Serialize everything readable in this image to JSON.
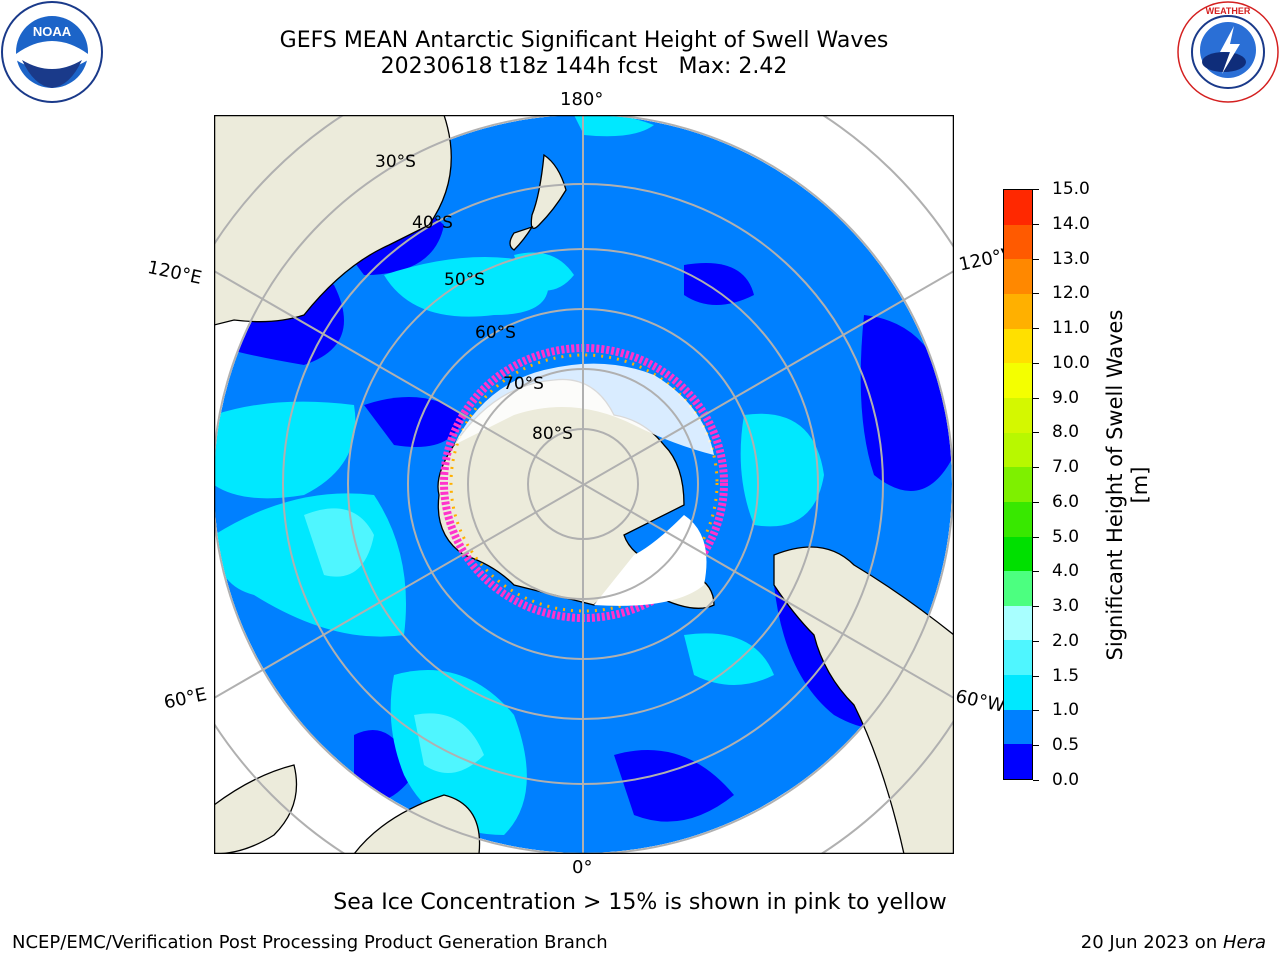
{
  "title": {
    "line1": "GEFS MEAN Antarctic Significant Height of Swell Waves",
    "line2": "20230618 t18z 144h fcst   Max: 2.42"
  },
  "logos": {
    "left": {
      "icon": "noaa-logo",
      "text": "NOAA",
      "ring_text": "NATIONAL OCEANIC AND ATMOSPHERIC ADMINISTRATION · U.S. DEPARTMENT OF COMMERCE"
    },
    "right": {
      "icon": "nws-logo",
      "ring_text": "NATIONAL WEATHER SERVICE"
    }
  },
  "map": {
    "projection": "south-polar-stereographic",
    "longitude_labels": {
      "top": "180°",
      "bottom": "0°",
      "upper_left": "120°E",
      "upper_right": "120°W",
      "lower_left": "60°E",
      "lower_right": "60°W"
    },
    "latitude_labels": [
      "30°S",
      "40°S",
      "50°S",
      "60°S",
      "70°S",
      "80°S"
    ],
    "colors": {
      "land": "#ecebdb",
      "sea_ice_fill": "#ffffff",
      "graticule": "#b0b0b0"
    }
  },
  "colorbar": {
    "title": "Significant Height of Swell Waves [m]",
    "tick_labels": [
      "0.0",
      "0.5",
      "1.0",
      "1.5",
      "2.0",
      "3.0",
      "4.0",
      "5.0",
      "6.0",
      "7.0",
      "8.0",
      "9.0",
      "10.0",
      "11.0",
      "12.0",
      "13.0",
      "14.0",
      "15.0"
    ],
    "colors": [
      "#0000ff",
      "#0080ff",
      "#00e8ff",
      "#4ff6ff",
      "#a8ffff",
      "#4cff80",
      "#00e000",
      "#38e800",
      "#7ef000",
      "#b8f800",
      "#d4f800",
      "#f4ff00",
      "#ffe000",
      "#ffb000",
      "#ff8800",
      "#ff5a00",
      "#ff2800"
    ]
  },
  "note": "Sea Ice Concentration > 15% is shown in pink to yellow",
  "footer": {
    "left": "NCEP/EMC/Verification Post Processing Product Generation Branch",
    "date": "20 Jun 2023 on ",
    "machine": "Hera"
  }
}
